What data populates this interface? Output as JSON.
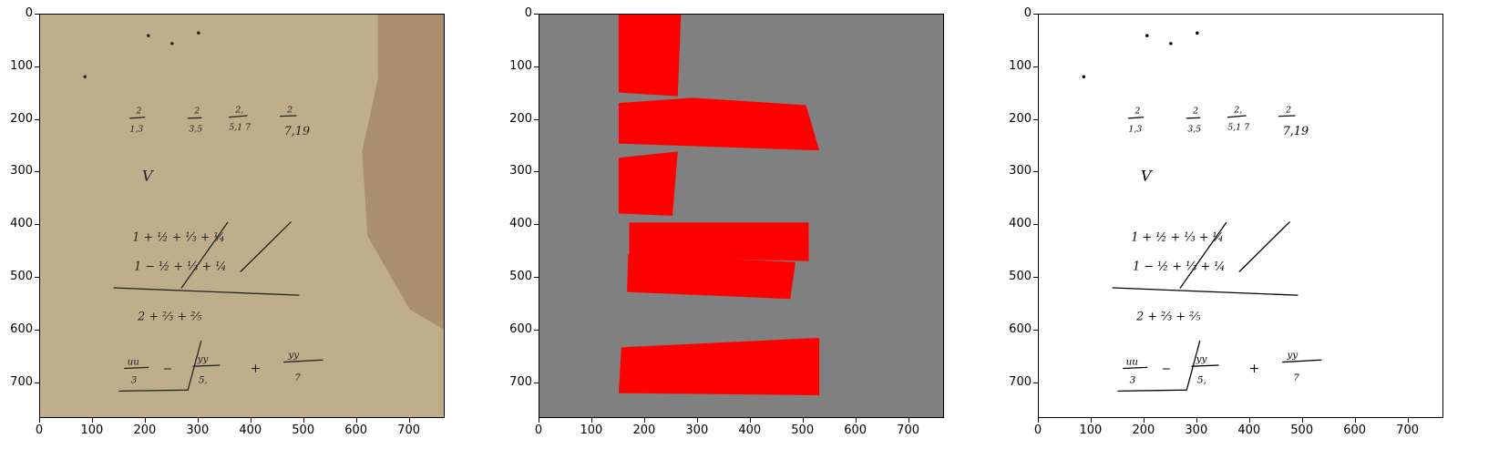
{
  "figure": {
    "panels": [
      {
        "name": "original-scan",
        "background": "#bfae8c"
      },
      {
        "name": "segmentation-mask",
        "background": "#808080",
        "mask_color": "#ff0000"
      },
      {
        "name": "binarized",
        "background": "#ffffff"
      }
    ],
    "x_ticks": [
      "0",
      "100",
      "200",
      "300",
      "400",
      "500",
      "600",
      "700"
    ],
    "y_ticks": [
      "0",
      "100",
      "200",
      "300",
      "400",
      "500",
      "600",
      "700"
    ],
    "image_range": [
      0,
      768
    ]
  }
}
